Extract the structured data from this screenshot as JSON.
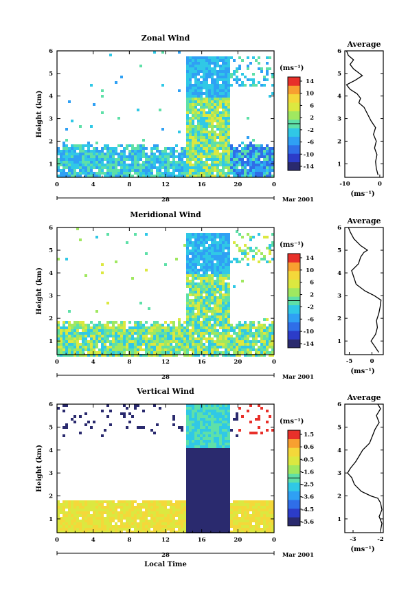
{
  "chart_data": [
    {
      "type": "heatmap",
      "title": "Zonal Wind",
      "ylabel": "Height (km)",
      "units": "(ms⁻¹)",
      "x_ticks": [
        "0",
        "4",
        "8",
        "12",
        "16",
        "20",
        "0"
      ],
      "x_range": [
        0,
        24
      ],
      "date_label": "28",
      "month_label": "Mar 2001",
      "y_ticks": [
        "1",
        "2",
        "3",
        "4",
        "5",
        "6"
      ],
      "y_range": [
        0.4,
        6
      ],
      "colorbar_ticks": [
        "14",
        "10",
        "6",
        "2",
        "-2",
        "-6",
        "-10",
        "-14"
      ],
      "colorbar_range": [
        -16,
        16
      ],
      "profile": {
        "title": "Average",
        "xlabel": "(ms⁻¹)",
        "x_ticks": [
          "-10",
          "0"
        ],
        "x_range": [
          -10,
          1
        ],
        "heights": [
          0.5,
          0.8,
          1.1,
          1.4,
          1.7,
          2.0,
          2.3,
          2.6,
          2.9,
          3.2,
          3.5,
          3.7,
          3.9,
          4.1,
          4.3,
          4.5,
          4.7,
          4.9,
          5.0,
          5.2,
          5.4,
          5.6,
          5.8,
          6.0
        ],
        "values": [
          -0.5,
          -1,
          -1.2,
          -0.8,
          -1.5,
          -1,
          -1.8,
          -1.2,
          -2.5,
          -3.5,
          -4.5,
          -6,
          -5.5,
          -6.5,
          -8.5,
          -9.5,
          -7,
          -5,
          -5.8,
          -7.5,
          -8.5,
          -7.5,
          -9,
          -9.5
        ]
      }
    },
    {
      "type": "heatmap",
      "title": "Meridional Wind",
      "ylabel": "Height (km)",
      "units": "(ms⁻¹)",
      "x_ticks": [
        "0",
        "4",
        "8",
        "12",
        "16",
        "20",
        "0"
      ],
      "x_range": [
        0,
        24
      ],
      "date_label": "28",
      "month_label": "Mar 2001",
      "y_ticks": [
        "1",
        "2",
        "3",
        "4",
        "5",
        "6"
      ],
      "y_range": [
        0.4,
        6
      ],
      "colorbar_ticks": [
        "14",
        "10",
        "6",
        "2",
        "-2",
        "-6",
        "-10",
        "-14"
      ],
      "colorbar_range": [
        -16,
        16
      ],
      "profile": {
        "title": "Average",
        "xlabel": "(ms⁻¹)",
        "x_ticks": [
          "-5",
          "0"
        ],
        "x_range": [
          -6,
          2.5
        ],
        "heights": [
          0.5,
          0.8,
          1.0,
          1.3,
          1.6,
          1.9,
          2.2,
          2.5,
          2.8,
          3.0,
          3.2,
          3.5,
          3.8,
          4.1,
          4.4,
          4.7,
          4.9,
          5.0,
          5.2,
          5.5,
          5.8,
          6.0
        ],
        "values": [
          1.5,
          0.5,
          -0.2,
          0.8,
          1.2,
          1.0,
          1.5,
          1.8,
          2.0,
          0.5,
          -1.5,
          -3.5,
          -4.0,
          -4.5,
          -3.0,
          -2.5,
          -1.8,
          -1.0,
          -2.5,
          -4.0,
          -4.8,
          -5.2
        ]
      }
    },
    {
      "type": "heatmap",
      "title": "Vertical Wind",
      "ylabel": "Height (km)",
      "xlabel": "Local Time",
      "units": "(ms⁻¹)",
      "x_ticks": [
        "0",
        "4",
        "8",
        "12",
        "16",
        "20",
        "0"
      ],
      "x_range": [
        0,
        24
      ],
      "date_label": "28",
      "month_label": "Mar 2001",
      "y_ticks": [
        "1",
        "2",
        "3",
        "4",
        "5",
        "6"
      ],
      "y_range": [
        0.4,
        6
      ],
      "colorbar_ticks": [
        "1.5",
        "0.6",
        "-0.5",
        "-1.6",
        "-2.5",
        "-3.6",
        "-4.5",
        "-5.6"
      ],
      "colorbar_range": [
        -6,
        2
      ],
      "profile": {
        "title": "Average",
        "xlabel": "(ms⁻¹)",
        "x_ticks": [
          "-3",
          "-2"
        ],
        "x_range": [
          -3.3,
          -1.9
        ],
        "heights": [
          0.5,
          0.8,
          1.1,
          1.4,
          1.7,
          1.9,
          2.0,
          2.2,
          2.5,
          2.8,
          3.0,
          3.2,
          3.5,
          3.8,
          4.0,
          4.3,
          4.6,
          4.9,
          5.2,
          5.5,
          5.8,
          6.0
        ],
        "values": [
          -2.0,
          -1.95,
          -2.05,
          -1.95,
          -2.0,
          -2.1,
          -2.35,
          -2.7,
          -2.95,
          -3.05,
          -3.2,
          -3.1,
          -2.9,
          -2.75,
          -2.65,
          -2.4,
          -2.3,
          -2.2,
          -2.05,
          -2.15,
          -2.0,
          -2.1
        ]
      }
    }
  ]
}
